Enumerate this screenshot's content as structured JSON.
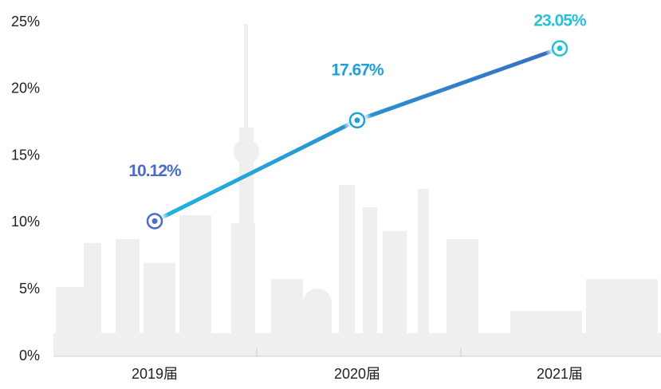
{
  "chart_data": {
    "type": "line",
    "categories": [
      "2019届",
      "2020届",
      "2021届"
    ],
    "series": [
      {
        "values": [
          10.12,
          17.67,
          23.05
        ],
        "value_labels": [
          "10.12%",
          "17.67%",
          "23.05%"
        ],
        "line_colors": [
          "#1cb5e0",
          "#3a6cc4"
        ],
        "label_colors": [
          "#4a6cc4",
          "#1fa0d8",
          "#27c0d6"
        ]
      }
    ],
    "ylim": [
      0,
      25
    ],
    "yticks": [
      {
        "value": 0,
        "label": "0%"
      },
      {
        "value": 5,
        "label": "5%"
      },
      {
        "value": 10,
        "label": "10%"
      },
      {
        "value": 15,
        "label": "15%"
      },
      {
        "value": 20,
        "label": "20%"
      },
      {
        "value": 25,
        "label": "25%"
      }
    ]
  }
}
